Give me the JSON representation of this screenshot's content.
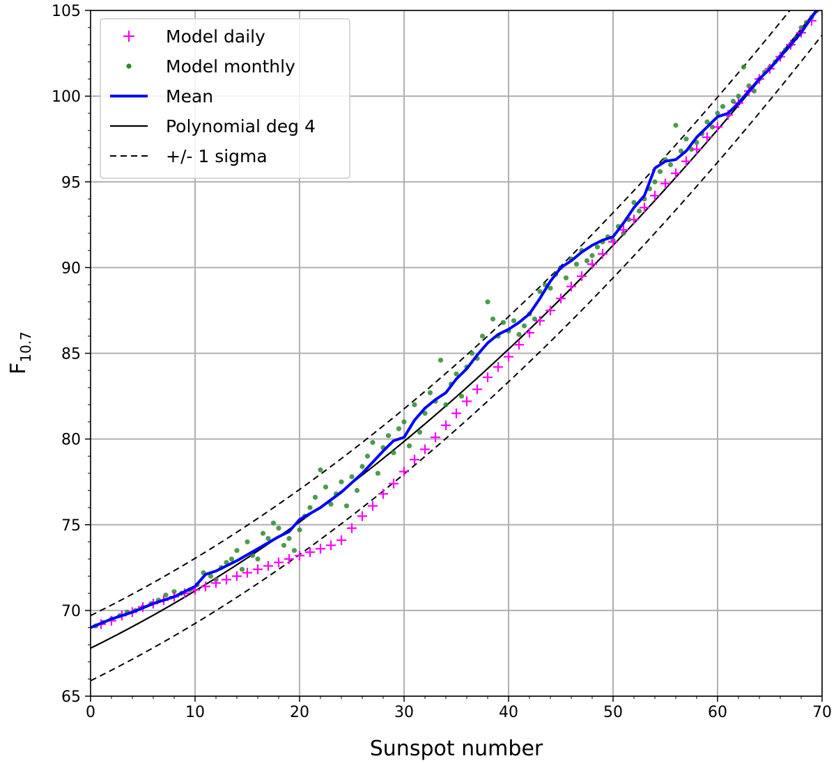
{
  "chart_data": {
    "type": "scatter",
    "title": "",
    "xlabel": "Sunspot number",
    "ylabel": "F10.7",
    "ylabel_main": "F",
    "ylabel_sub": "10.7",
    "xlim": [
      0,
      70
    ],
    "ylim": [
      65,
      105
    ],
    "xticks": [
      0,
      10,
      20,
      30,
      40,
      50,
      60,
      70
    ],
    "yticks": [
      65,
      70,
      75,
      80,
      85,
      90,
      95,
      100,
      105
    ],
    "grid": true,
    "legend_position": "top-left",
    "legend": [
      {
        "label": "Model daily",
        "marker": "plus",
        "color": "#ff00ff"
      },
      {
        "label": "Model monthly",
        "marker": "dot",
        "color": "#2e8b2e"
      },
      {
        "label": "Mean",
        "marker": "thick-line",
        "color": "#0000ff"
      },
      {
        "label": "Polynomial deg 4",
        "marker": "line",
        "color": "#000000"
      },
      {
        "label": "+/- 1 sigma",
        "marker": "dashed-line",
        "color": "#000000"
      }
    ],
    "series": [
      {
        "name": "Model daily",
        "kind": "scatter-plus",
        "color": "#ff00ff",
        "points": [
          [
            1,
            69.2
          ],
          [
            2,
            69.4
          ],
          [
            3,
            69.7
          ],
          [
            4,
            69.9
          ],
          [
            5,
            70.2
          ],
          [
            6,
            70.4
          ],
          [
            7,
            70.6
          ],
          [
            8,
            70.8
          ],
          [
            9,
            71.0
          ],
          [
            10,
            71.2
          ],
          [
            11,
            71.4
          ],
          [
            12,
            71.6
          ],
          [
            13,
            71.8
          ],
          [
            14,
            72.0
          ],
          [
            15,
            72.2
          ],
          [
            16,
            72.4
          ],
          [
            17,
            72.6
          ],
          [
            18,
            72.8
          ],
          [
            19,
            73.0
          ],
          [
            20,
            73.2
          ],
          [
            21,
            73.4
          ],
          [
            22,
            73.6
          ],
          [
            23,
            73.8
          ],
          [
            24,
            74.1
          ],
          [
            25,
            74.8
          ],
          [
            26,
            75.5
          ],
          [
            27,
            76.1
          ],
          [
            28,
            76.8
          ],
          [
            29,
            77.4
          ],
          [
            30,
            78.1
          ],
          [
            31,
            78.8
          ],
          [
            32,
            79.4
          ],
          [
            33,
            80.1
          ],
          [
            34,
            80.8
          ],
          [
            35,
            81.5
          ],
          [
            36,
            82.2
          ],
          [
            37,
            82.9
          ],
          [
            38,
            83.6
          ],
          [
            39,
            84.2
          ],
          [
            40,
            84.8
          ],
          [
            41,
            85.5
          ],
          [
            42,
            86.2
          ],
          [
            43,
            86.9
          ],
          [
            44,
            87.5
          ],
          [
            45,
            88.2
          ],
          [
            46,
            88.9
          ],
          [
            47,
            89.5
          ],
          [
            48,
            90.2
          ],
          [
            49,
            90.8
          ],
          [
            50,
            91.5
          ],
          [
            51,
            92.2
          ],
          [
            52,
            92.8
          ],
          [
            53,
            93.5
          ],
          [
            54,
            94.2
          ],
          [
            55,
            94.9
          ],
          [
            56,
            95.5
          ],
          [
            57,
            96.2
          ],
          [
            58,
            96.9
          ],
          [
            59,
            97.6
          ],
          [
            60,
            98.2
          ],
          [
            61,
            98.9
          ],
          [
            62,
            99.6
          ],
          [
            63,
            100.3
          ],
          [
            64,
            101.0
          ],
          [
            65,
            101.6
          ],
          [
            66,
            102.3
          ],
          [
            67,
            103.0
          ],
          [
            68,
            103.7
          ],
          [
            69,
            104.4
          ],
          [
            70,
            105.0
          ]
        ]
      },
      {
        "name": "Model monthly",
        "kind": "scatter-dot",
        "color": "#2e8b2e",
        "points": [
          [
            0.5,
            69.1
          ],
          [
            1.2,
            69.3
          ],
          [
            2.0,
            69.5
          ],
          [
            2.8,
            69.7
          ],
          [
            3.5,
            69.9
          ],
          [
            4.3,
            70.0
          ],
          [
            5.0,
            70.2
          ],
          [
            5.8,
            70.4
          ],
          [
            6.5,
            70.6
          ],
          [
            7.2,
            70.9
          ],
          [
            8.0,
            71.1
          ],
          [
            8.7,
            71.0
          ],
          [
            9.5,
            71.2
          ],
          [
            10.2,
            71.5
          ],
          [
            10.8,
            72.2
          ],
          [
            11.5,
            72.0
          ],
          [
            12.0,
            71.8
          ],
          [
            12.5,
            72.5
          ],
          [
            13.0,
            72.8
          ],
          [
            13.5,
            73.0
          ],
          [
            14.0,
            73.5
          ],
          [
            14.5,
            72.4
          ],
          [
            15.0,
            74.0
          ],
          [
            15.5,
            73.2
          ],
          [
            16.0,
            73.0
          ],
          [
            16.5,
            74.5
          ],
          [
            17.0,
            74.2
          ],
          [
            17.5,
            75.1
          ],
          [
            18.0,
            74.8
          ],
          [
            18.5,
            73.8
          ],
          [
            19.0,
            74.2
          ],
          [
            19.5,
            73.5
          ],
          [
            20.0,
            74.7
          ],
          [
            20.5,
            75.5
          ],
          [
            21.0,
            76.0
          ],
          [
            21.5,
            76.6
          ],
          [
            22.0,
            78.2
          ],
          [
            22.5,
            77.2
          ],
          [
            23.0,
            76.2
          ],
          [
            23.5,
            76.8
          ],
          [
            24.0,
            77.5
          ],
          [
            24.5,
            76.1
          ],
          [
            25.0,
            77.8
          ],
          [
            25.5,
            77.0
          ],
          [
            26.0,
            78.4
          ],
          [
            26.5,
            79.0
          ],
          [
            27.0,
            79.8
          ],
          [
            27.5,
            78.0
          ],
          [
            28.0,
            79.5
          ],
          [
            28.5,
            80.2
          ],
          [
            29.0,
            79.2
          ],
          [
            29.5,
            80.6
          ],
          [
            30.0,
            81.0
          ],
          [
            30.5,
            79.6
          ],
          [
            31.0,
            82.0
          ],
          [
            31.5,
            80.4
          ],
          [
            32.0,
            81.5
          ],
          [
            32.5,
            82.7
          ],
          [
            33.0,
            82.2
          ],
          [
            33.5,
            84.6
          ],
          [
            34.0,
            82.0
          ],
          [
            34.5,
            83.2
          ],
          [
            35.0,
            83.8
          ],
          [
            35.5,
            82.5
          ],
          [
            36.0,
            84.2
          ],
          [
            36.5,
            85.0
          ],
          [
            37.0,
            84.7
          ],
          [
            37.5,
            86.0
          ],
          [
            38.0,
            88.0
          ],
          [
            38.5,
            87.0
          ],
          [
            39.0,
            86.0
          ],
          [
            39.5,
            86.8
          ],
          [
            40.0,
            86.3
          ],
          [
            40.5,
            86.9
          ],
          [
            41.0,
            86.1
          ],
          [
            41.5,
            86.6
          ],
          [
            42.0,
            87.3
          ],
          [
            42.5,
            87.0
          ],
          [
            43.0,
            88.6
          ],
          [
            43.5,
            89.0
          ],
          [
            44.0,
            88.8
          ],
          [
            44.5,
            89.6
          ],
          [
            45.0,
            90.0
          ],
          [
            45.5,
            89.4
          ],
          [
            46.0,
            90.5
          ],
          [
            46.5,
            90.2
          ],
          [
            47.0,
            91.0
          ],
          [
            47.5,
            90.4
          ],
          [
            48.0,
            90.7
          ],
          [
            48.5,
            91.2
          ],
          [
            49.0,
            91.5
          ],
          [
            49.5,
            91.8
          ],
          [
            50.0,
            91.6
          ],
          [
            50.5,
            92.4
          ],
          [
            51.0,
            92.0
          ],
          [
            51.5,
            92.8
          ],
          [
            52.0,
            93.8
          ],
          [
            52.5,
            93.3
          ],
          [
            53.0,
            94.0
          ],
          [
            53.5,
            94.6
          ],
          [
            54.0,
            95.0
          ],
          [
            54.5,
            95.6
          ],
          [
            55.0,
            96.3
          ],
          [
            55.5,
            96.0
          ],
          [
            56.0,
            98.3
          ],
          [
            56.5,
            96.8
          ],
          [
            57.0,
            97.5
          ],
          [
            57.5,
            96.9
          ],
          [
            58.0,
            97.3
          ],
          [
            58.5,
            97.8
          ],
          [
            59.0,
            98.5
          ],
          [
            59.5,
            98.2
          ],
          [
            60.0,
            99.0
          ],
          [
            60.5,
            99.4
          ],
          [
            61.0,
            98.9
          ],
          [
            61.5,
            99.7
          ],
          [
            62.0,
            100.0
          ],
          [
            62.5,
            101.7
          ],
          [
            63.0,
            100.6
          ],
          [
            63.5,
            100.3
          ],
          [
            64.0,
            101.0
          ],
          [
            64.5,
            101.4
          ],
          [
            65.0,
            101.7
          ],
          [
            65.5,
            102.0
          ],
          [
            66.0,
            102.3
          ],
          [
            66.5,
            102.7
          ],
          [
            67.0,
            103.0
          ],
          [
            67.5,
            103.4
          ],
          [
            68.0,
            104.0
          ],
          [
            68.5,
            104.3
          ],
          [
            69.0,
            104.6
          ],
          [
            69.5,
            105.0
          ]
        ]
      },
      {
        "name": "Mean",
        "kind": "line",
        "color": "#0000ff",
        "points": [
          [
            0,
            69.0
          ],
          [
            2,
            69.5
          ],
          [
            4,
            69.9
          ],
          [
            6,
            70.4
          ],
          [
            8,
            70.8
          ],
          [
            10,
            71.4
          ],
          [
            11,
            72.1
          ],
          [
            12,
            72.3
          ],
          [
            14,
            72.9
          ],
          [
            16,
            73.6
          ],
          [
            18,
            74.3
          ],
          [
            19,
            74.6
          ],
          [
            20,
            75.3
          ],
          [
            22,
            76.0
          ],
          [
            24,
            76.9
          ],
          [
            26,
            78.0
          ],
          [
            28,
            79.3
          ],
          [
            29,
            79.9
          ],
          [
            30,
            80.1
          ],
          [
            31,
            81.1
          ],
          [
            32,
            81.8
          ],
          [
            33,
            82.3
          ],
          [
            34,
            82.7
          ],
          [
            35,
            83.5
          ],
          [
            36,
            84.1
          ],
          [
            37,
            84.9
          ],
          [
            38,
            85.6
          ],
          [
            39,
            86.1
          ],
          [
            40,
            86.4
          ],
          [
            41,
            86.8
          ],
          [
            42,
            87.3
          ],
          [
            43,
            88.2
          ],
          [
            44,
            89.2
          ],
          [
            45,
            90.0
          ],
          [
            46,
            90.4
          ],
          [
            47,
            90.9
          ],
          [
            48,
            91.3
          ],
          [
            49,
            91.6
          ],
          [
            50,
            91.8
          ],
          [
            51,
            92.6
          ],
          [
            52,
            93.5
          ],
          [
            53,
            94.2
          ],
          [
            54,
            95.8
          ],
          [
            55,
            96.2
          ],
          [
            56,
            96.3
          ],
          [
            57,
            96.8
          ],
          [
            58,
            97.6
          ],
          [
            59,
            98.2
          ],
          [
            60,
            98.8
          ],
          [
            61,
            99.0
          ],
          [
            62,
            99.6
          ],
          [
            63,
            100.3
          ],
          [
            64,
            101.0
          ],
          [
            65,
            101.6
          ],
          [
            66,
            102.3
          ],
          [
            67,
            103.0
          ],
          [
            68,
            103.7
          ],
          [
            69,
            104.6
          ],
          [
            70,
            105.4
          ]
        ]
      },
      {
        "name": "Polynomial deg 4",
        "kind": "curve",
        "color": "#000000",
        "coefficients": [
          67.8,
          0.3,
          0.0034,
          0,
          0
        ]
      },
      {
        "name": "+/- 1 sigma",
        "kind": "band",
        "color": "#000000",
        "offset": 1.9
      }
    ]
  }
}
